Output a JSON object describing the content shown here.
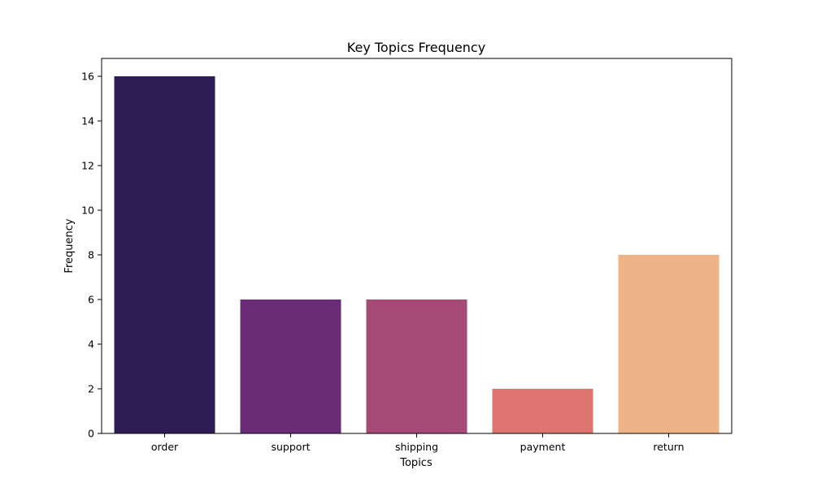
{
  "chart_data": {
    "type": "bar",
    "title": "Key Topics Frequency",
    "xlabel": "Topics",
    "ylabel": "Frequency",
    "categories": [
      "order",
      "support",
      "shipping",
      "payment",
      "return"
    ],
    "values": [
      16,
      6,
      6,
      2,
      8
    ],
    "colors": [
      "#2e1d55",
      "#6b2c77",
      "#a64a77",
      "#e07470",
      "#eeb387"
    ],
    "ylim": [
      0,
      16.8
    ],
    "yticks": [
      0,
      2,
      4,
      6,
      8,
      10,
      12,
      14,
      16
    ],
    "grid": false,
    "legend": false
  }
}
